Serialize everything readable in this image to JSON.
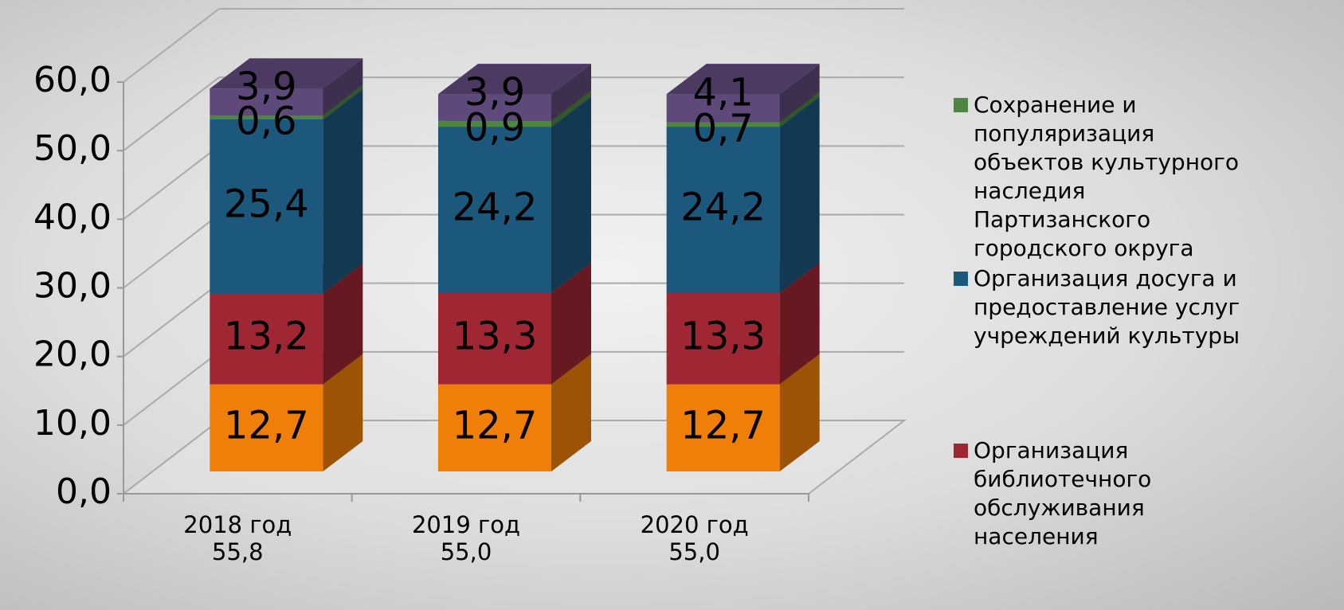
{
  "chart_data": {
    "type": "bar3d_stacked",
    "categories": [
      "2018 год\n55,8",
      "2019 год\n55,0",
      "2020 год\n55,0"
    ],
    "series": [
      {
        "color": "#f07f09",
        "values": [
          12.7,
          12.7,
          12.7
        ],
        "value_labels": [
          "12,7",
          "12,7",
          "12,7"
        ]
      },
      {
        "name": "Организация\nбиблиотечного\nобслуживания\nнаселения",
        "color": "#9e2733",
        "values": [
          13.2,
          13.3,
          13.3
        ],
        "value_labels": [
          "13,2",
          "13,3",
          "13,3"
        ]
      },
      {
        "name": "Организация досуга и\nпредоставление услуг\nучреждений культуры",
        "color": "#1b587c",
        "values": [
          25.4,
          24.2,
          24.2
        ],
        "value_labels": [
          "25,4",
          "24,2",
          "24,2"
        ]
      },
      {
        "name": "Сохранение и\nпопуляризация\nобъектов культурного\nнаследия\nПартизанского\nгородского округа",
        "color": "#4e8542",
        "values": [
          0.6,
          0.9,
          0.7
        ],
        "value_labels": [
          "0,6",
          "0,9",
          "0,7"
        ]
      },
      {
        "color": "#5f497a",
        "values": [
          3.9,
          3.9,
          4.1
        ],
        "value_labels": [
          "3,9",
          "3,9",
          "4,1"
        ]
      }
    ],
    "ylim": [
      0,
      60
    ],
    "yticks": [
      {
        "value": 0,
        "label": "0,0"
      },
      {
        "value": 10,
        "label": "10,0"
      },
      {
        "value": 20,
        "label": "20,0"
      },
      {
        "value": 30,
        "label": "30,0"
      },
      {
        "value": 40,
        "label": "40,0"
      },
      {
        "value": 50,
        "label": "50,0"
      },
      {
        "value": 60,
        "label": "60,0"
      }
    ],
    "grid": true
  }
}
